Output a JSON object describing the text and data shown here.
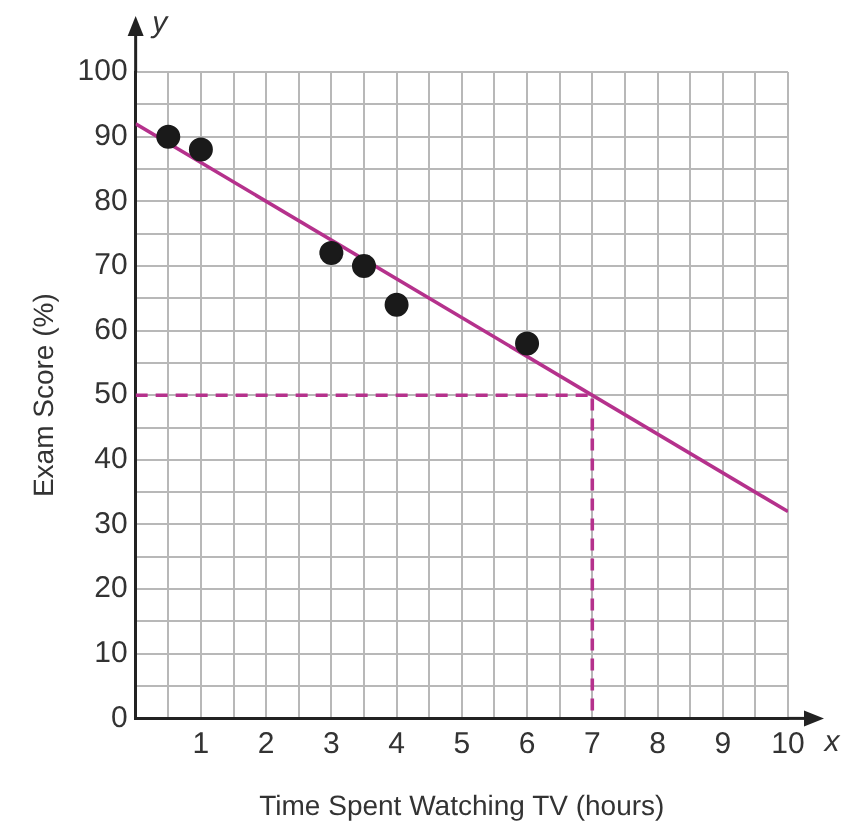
{
  "chart_data": {
    "type": "scatter",
    "xlabel": "Time Spent Watching TV (hours)",
    "ylabel": "Exam Score (%)",
    "annotations": [
      "x",
      "y"
    ],
    "xlim": [
      0,
      10
    ],
    "ylim": [
      0,
      100
    ],
    "xticks": [
      {
        "value": 0,
        "label": null
      },
      {
        "value": 0.5,
        "label": null
      },
      1,
      {
        "value": 1.5,
        "label": null
      },
      2,
      {
        "value": 2.5,
        "label": null
      },
      3,
      {
        "value": 3.5,
        "label": null
      },
      4,
      {
        "value": 4.5,
        "label": null
      },
      5,
      {
        "value": 5.5,
        "label": null
      },
      6,
      {
        "value": 6.5,
        "label": null
      },
      7,
      {
        "value": 7.5,
        "label": null
      },
      8,
      {
        "value": 8.5,
        "label": null
      },
      9,
      {
        "value": 9.5,
        "label": null
      },
      10
    ],
    "yticks": [
      0,
      {
        "value": 5,
        "label": null
      },
      10,
      {
        "value": 15,
        "label": null
      },
      20,
      {
        "value": 25,
        "label": null
      },
      30,
      {
        "value": 35,
        "label": null
      },
      40,
      {
        "value": 45,
        "label": null
      },
      50,
      {
        "value": 55,
        "label": null
      },
      60,
      {
        "value": 65,
        "label": null
      },
      70,
      {
        "value": 75,
        "label": null
      },
      80,
      {
        "value": 85,
        "label": null
      },
      90,
      {
        "value": 95,
        "label": null
      },
      100
    ],
    "grid": true,
    "legend": false,
    "series": [
      {
        "marker": "circle",
        "color": "#1a1a1a",
        "x": [
          0.5,
          1,
          3,
          3.5,
          4,
          6
        ],
        "values": [
          90,
          88,
          72,
          70,
          64,
          58
        ]
      },
      {
        "type": "line",
        "marker": "none",
        "line_style": "solid",
        "color": "#b5318c",
        "x": [
          0,
          10
        ],
        "values": [
          92,
          32
        ]
      },
      {
        "type": "line",
        "marker": "none",
        "line_style": "dashed",
        "color": "#b5318c",
        "x": [
          0,
          7,
          7
        ],
        "values": [
          50,
          50,
          0
        ]
      }
    ]
  }
}
